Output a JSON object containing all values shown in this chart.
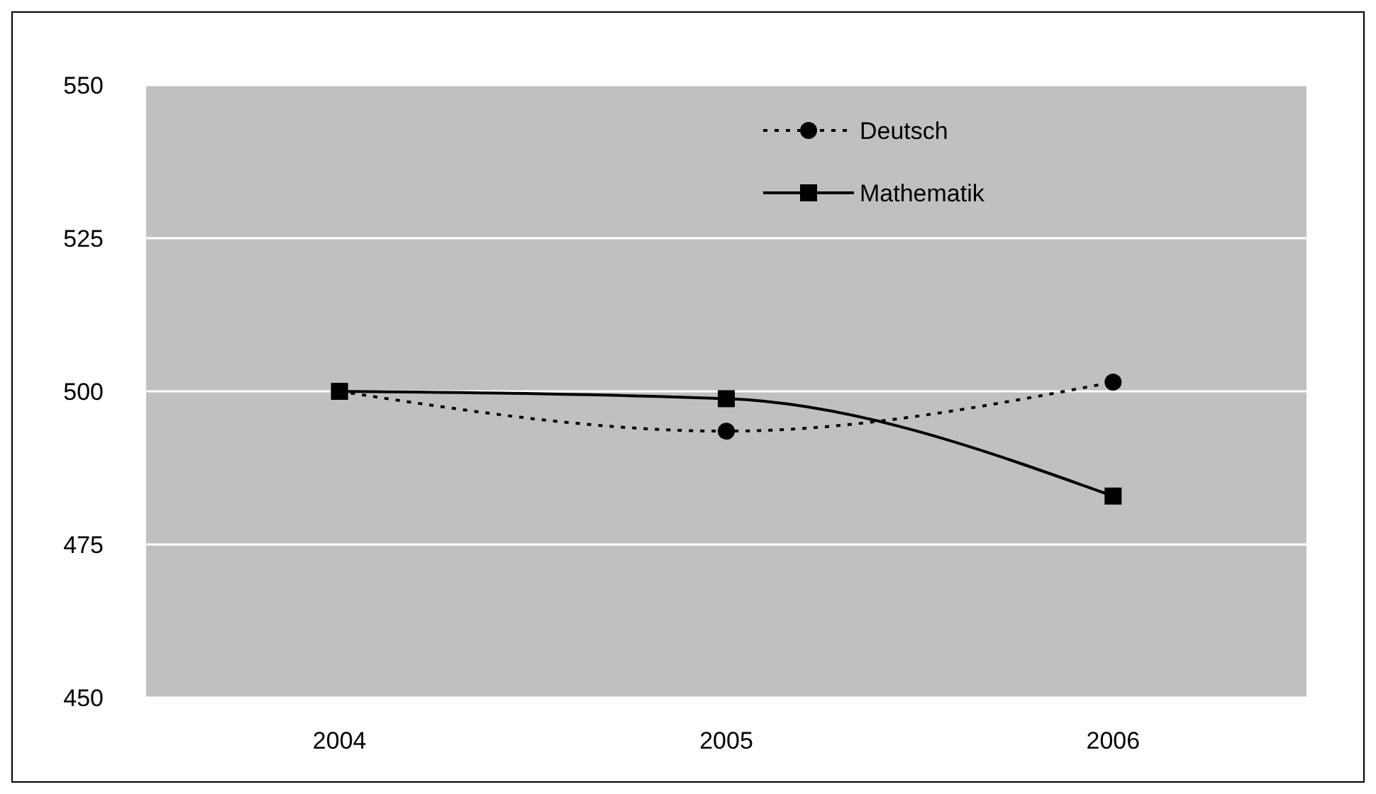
{
  "chart_data": {
    "type": "line",
    "categories": [
      "2004",
      "2005",
      "2006"
    ],
    "ylim": [
      450,
      550
    ],
    "yticks": [
      450,
      475,
      500,
      525,
      550
    ],
    "grid": "y",
    "legend": "top right",
    "series": [
      {
        "name": "Deutsch",
        "color": "#000000",
        "values": [
          500,
          493.5,
          501.5
        ],
        "marker": "circle",
        "line_style": "dotted"
      },
      {
        "name": "Mathematik",
        "color": "#000000",
        "values": [
          500,
          498.8,
          482.9
        ],
        "marker": "square",
        "line_style": "solid"
      }
    ]
  }
}
